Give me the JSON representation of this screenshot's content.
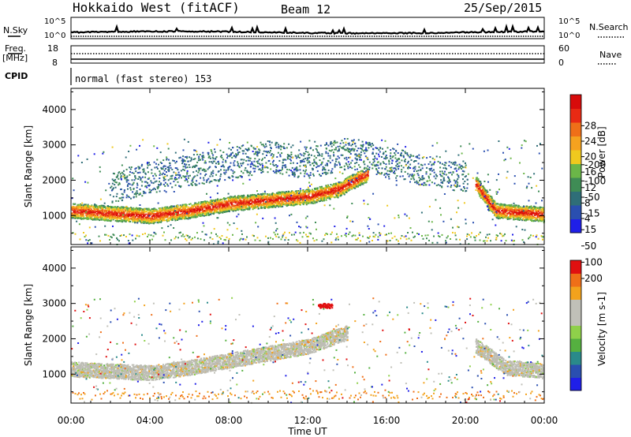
{
  "header": {
    "station": "Hokkaido West (fitACF)",
    "beam": "Beam 12",
    "date": "25/Sep/2015"
  },
  "params": {
    "nsky_label": "N.Sky",
    "nsky_ticks": [
      "10^5",
      "10^0"
    ],
    "nsearch_label": "N.Search",
    "nsearch_ticks": [
      "10^5",
      "10^0"
    ],
    "freq_label_1": "Freq.",
    "freq_label_2": "[MHz]",
    "freq_ticks": [
      "18",
      "8"
    ],
    "nave_label": "Nave",
    "nave_ticks": [
      "60",
      "0"
    ],
    "cpid_label": "CPID",
    "cpid_text": "normal (fast stereo) 153"
  },
  "colors": {
    "power": [
      "#1f1fe8",
      "#2a4fb0",
      "#2f6e78",
      "#3f8c55",
      "#6bb648",
      "#f0c91e",
      "#f5a21f",
      "#ef6f18",
      "#e82a14",
      "#d80b0b"
    ],
    "velocity": [
      "#e01010",
      "#ef6f18",
      "#f3a21c",
      "#c0c0b8",
      "#c0c0b8",
      "#8fd04a",
      "#55b040",
      "#2a8a8a",
      "#2a4fb0",
      "#1f1fe8"
    ],
    "ground_scatter": "#bdbdb5"
  },
  "chart_data": [
    {
      "type": "heatmap",
      "panel": "power",
      "xlabel": "",
      "ylabel": "Slant Range [km]",
      "x_range": [
        "00:00",
        "00:00"
      ],
      "x_ticks": [
        "00:00",
        "04:00",
        "08:00",
        "12:00",
        "16:00",
        "20:00",
        "00:00"
      ],
      "ylim": [
        180,
        4600
      ],
      "y_ticks": [
        1000,
        2000,
        3000,
        4000
      ],
      "colorbar_label": "Power [dB]",
      "colorbar_ticks": [
        "4",
        "8",
        "12",
        "16",
        "20",
        "24",
        "28"
      ],
      "colorbar_range": [
        0,
        30
      ],
      "features": [
        {
          "hours": [
            0,
            4,
            6,
            8,
            10,
            12,
            13.5,
            15
          ],
          "range_km": [
            1150,
            1000,
            1150,
            1350,
            1450,
            1550,
            1750,
            2200
          ],
          "level": "strong"
        },
        {
          "hours": [
            20.5,
            21.5,
            24
          ],
          "range_km": [
            1900,
            1150,
            1050
          ],
          "level": "strong"
        },
        {
          "hours": [
            2,
            4,
            6,
            8,
            10,
            12,
            14,
            16,
            18,
            20
          ],
          "range_km": [
            1800,
            2100,
            2300,
            2500,
            2700,
            2500,
            2800,
            2500,
            2300,
            2100
          ],
          "level": "weak"
        }
      ]
    },
    {
      "type": "heatmap",
      "panel": "velocity",
      "xlabel": "Time UT",
      "ylabel": "Slant Range [km]",
      "x_range": [
        "00:00",
        "00:00"
      ],
      "x_ticks": [
        "00:00",
        "04:00",
        "08:00",
        "12:00",
        "16:00",
        "20:00",
        "00:00"
      ],
      "ylim": [
        180,
        4600
      ],
      "y_ticks": [
        1000,
        2000,
        3000,
        4000
      ],
      "colorbar_label": "Velocity [m s-1]",
      "colorbar_ticks": [
        "200",
        "100",
        "50",
        "15",
        "-15",
        "-50",
        "-100",
        "-200"
      ],
      "colorbar_range": [
        -250,
        250
      ],
      "features": [
        {
          "hours": [
            0,
            4,
            6,
            8,
            10,
            12,
            14
          ],
          "range_km": [
            1150,
            1050,
            1200,
            1400,
            1600,
            1800,
            2200
          ],
          "level": "ground"
        },
        {
          "hours": [
            20.5,
            22,
            24
          ],
          "range_km": [
            1800,
            1200,
            1100
          ],
          "level": "ground"
        },
        {
          "hours": [
            12.5,
            13.2
          ],
          "range_km": [
            2950,
            2950
          ],
          "level": "red"
        }
      ]
    }
  ]
}
